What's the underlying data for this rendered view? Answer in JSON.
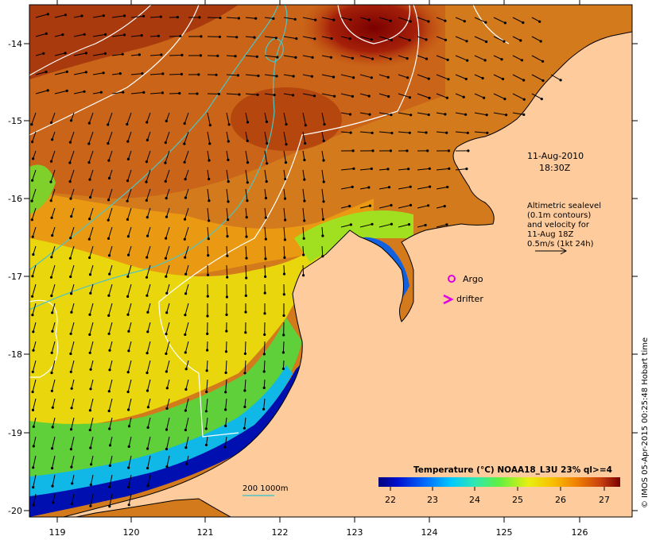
{
  "map": {
    "axes": {
      "x_ticks": [
        "119",
        "120",
        "121",
        "122",
        "123",
        "124",
        "125",
        "126"
      ],
      "y_ticks": [
        "-14",
        "-15",
        "-16",
        "-17",
        "-18",
        "-19",
        "-20"
      ]
    },
    "timestamp": {
      "line1": "11-Aug-2010",
      "line2": "18:30Z"
    },
    "altimetry_note": [
      "Altimetric sealevel",
      "(0.1m contours)",
      "and velocity for",
      "11-Aug 18Z",
      "0.5m/s (1kt 24h)"
    ],
    "markers": {
      "argo_label": "Argo",
      "drifter_label": "drifter"
    },
    "isobath_label": "200  1000m",
    "colorbar": {
      "title": "Temperature (°C) NOAA18_L3U 23% ql>=4",
      "ticks": [
        "22",
        "23",
        "24",
        "25",
        "26",
        "27"
      ]
    },
    "credit": "© IMOS 05-Apr-2015 00:25:48 Hobart time",
    "colors": {
      "land": "#fecb9c",
      "contour_sealevel": "#ffffff",
      "isobath": "#4fc4c4",
      "argo": "#e000e0",
      "drifter": "#e000e0",
      "arrows": "#000000"
    }
  }
}
